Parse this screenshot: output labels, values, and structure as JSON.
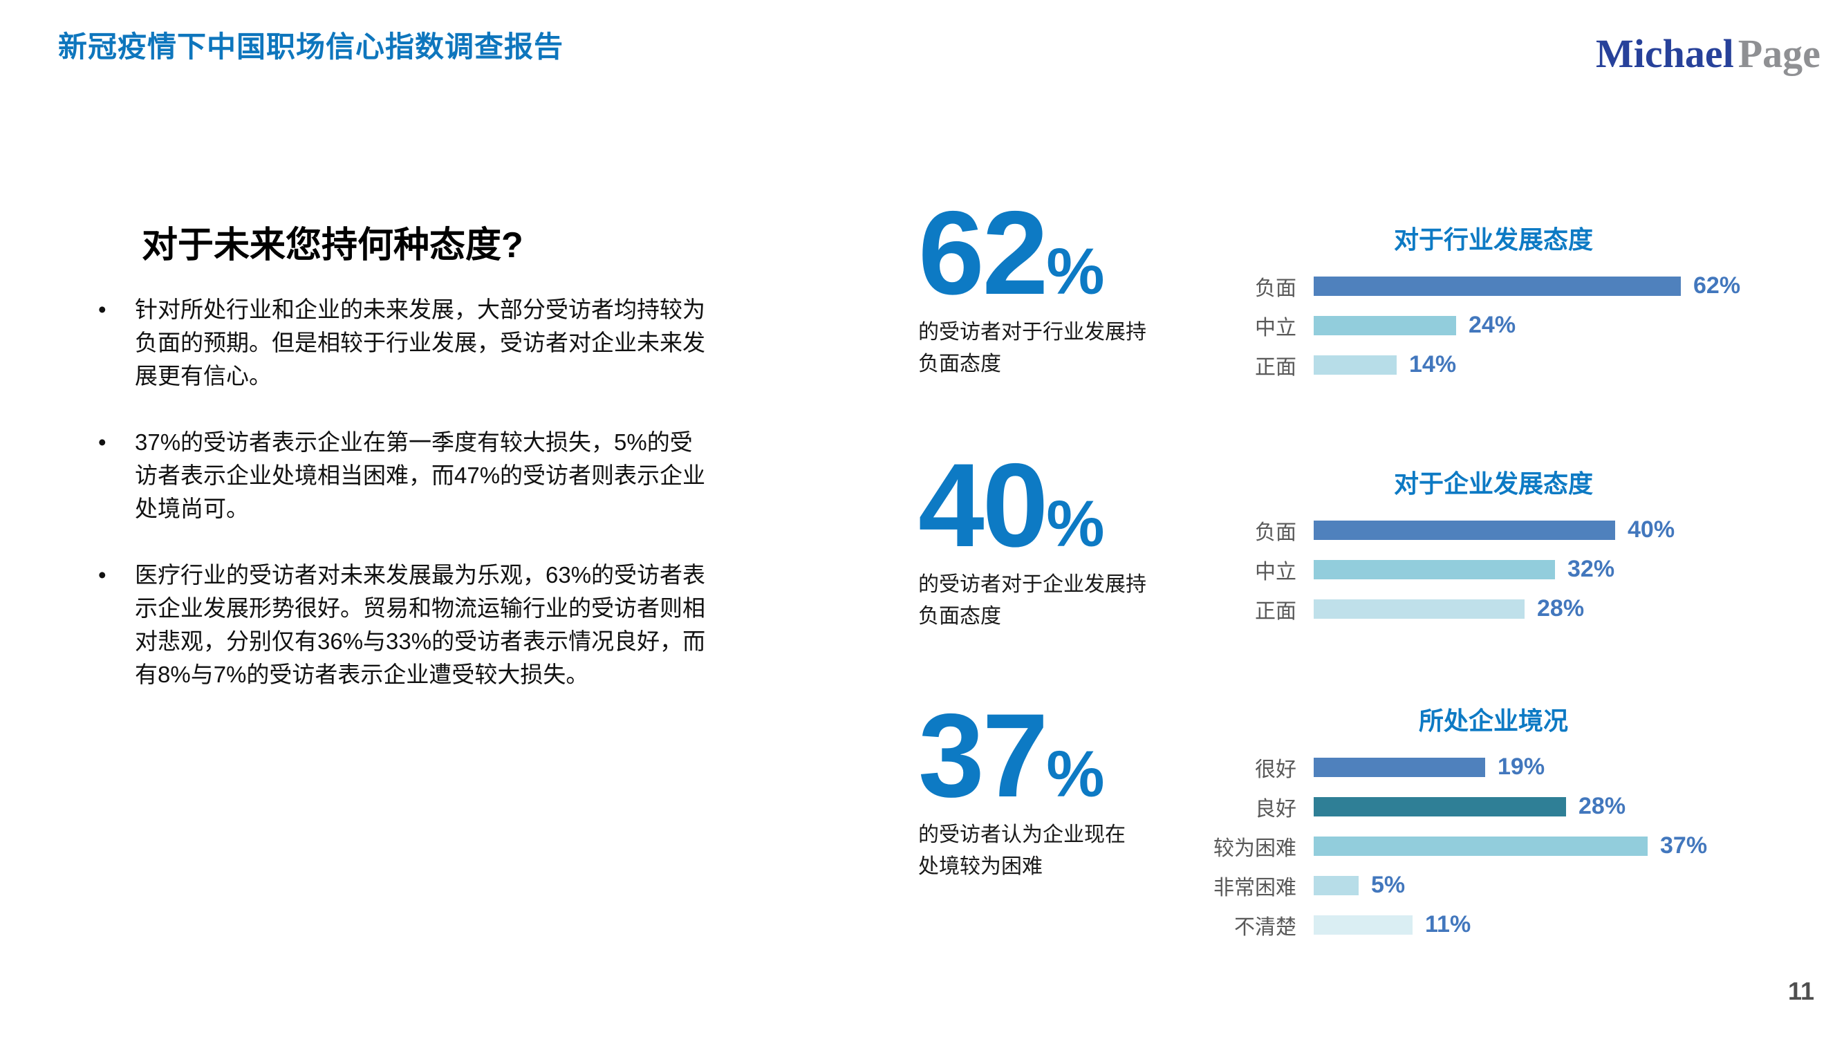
{
  "page": {
    "title": "新冠疫情下中国职场信心指数调查报告",
    "page_number": "11",
    "logo_part1": "Michael",
    "logo_part2": "Page",
    "colors": {
      "brand_blue": "#0d7ac4",
      "header_blue": "#0e76bd",
      "value_label_blue": "#4277bd",
      "category_gray": "#595959",
      "logo_navy": "#27419a",
      "logo_gray": "#8f9093"
    }
  },
  "left_panel": {
    "heading": "对于未来您持何种态度?",
    "bullet_glyph": "•",
    "bullets": [
      "针对所处行业和企业的未来发展，大部分受访者均持较为\n负面的预期。但是相较于行业发展，受访者对企业未来发\n展更有信心。",
      "37%的受访者表示企业在第一季度有较大损失，5%的受\n访者表示企业处境相当困难，而47%的受访者则表示企业\n处境尚可。",
      "医疗行业的受访者对未来发展最为乐观，63%的受访者表\n示企业发展形势很好。贸易和物流运输行业的受访者则相\n对悲观，分别仅有36%与33%的受访者表示情况良好，而\n有8%与7%的受访者表示企业遭受较大损失。"
    ]
  },
  "stats": [
    {
      "value": "62",
      "pct": "%",
      "description": "的受访者对于行业发展持\n负面态度"
    },
    {
      "value": "40",
      "pct": "%",
      "description": "的受访者对于企业发展持\n负面态度"
    },
    {
      "value": "37",
      "pct": "%",
      "description": "的受访者认为企业现在\n处境较为困难"
    }
  ],
  "chart_data": [
    {
      "type": "bar",
      "orientation": "horizontal",
      "title": "对于行业发展态度",
      "categories": [
        "负面",
        "中立",
        "正面"
      ],
      "values": [
        62,
        24,
        14
      ],
      "value_labels": [
        "62%",
        "24%",
        "14%"
      ],
      "bar_colors": [
        "#4f81bd",
        "#92cddc",
        "#b7dde8"
      ],
      "axis_max": 70,
      "unit": "%",
      "grid": false,
      "legend": "none"
    },
    {
      "type": "bar",
      "orientation": "horizontal",
      "title": "对于企业发展态度",
      "categories": [
        "负面",
        "中立",
        "正面"
      ],
      "values": [
        40,
        32,
        28
      ],
      "value_labels": [
        "40%",
        "32%",
        "28%"
      ],
      "bar_colors": [
        "#4f81bd",
        "#92cddc",
        "#bfe0ea"
      ],
      "axis_max": 55,
      "unit": "%",
      "grid": false,
      "legend": "none"
    },
    {
      "type": "bar",
      "orientation": "horizontal",
      "title": "所处企业境况",
      "categories": [
        "很好",
        "良好",
        "较为困难",
        "非常困难",
        "不清楚"
      ],
      "values": [
        19,
        28,
        37,
        5,
        11
      ],
      "value_labels": [
        "19%",
        "28%",
        "37%",
        "5%",
        "11%"
      ],
      "bar_colors": [
        "#4f81bd",
        "#2f7f96",
        "#92cddc",
        "#b7dde8",
        "#daeef3"
      ],
      "axis_max": 46,
      "unit": "%",
      "grid": false,
      "legend": "none"
    }
  ]
}
